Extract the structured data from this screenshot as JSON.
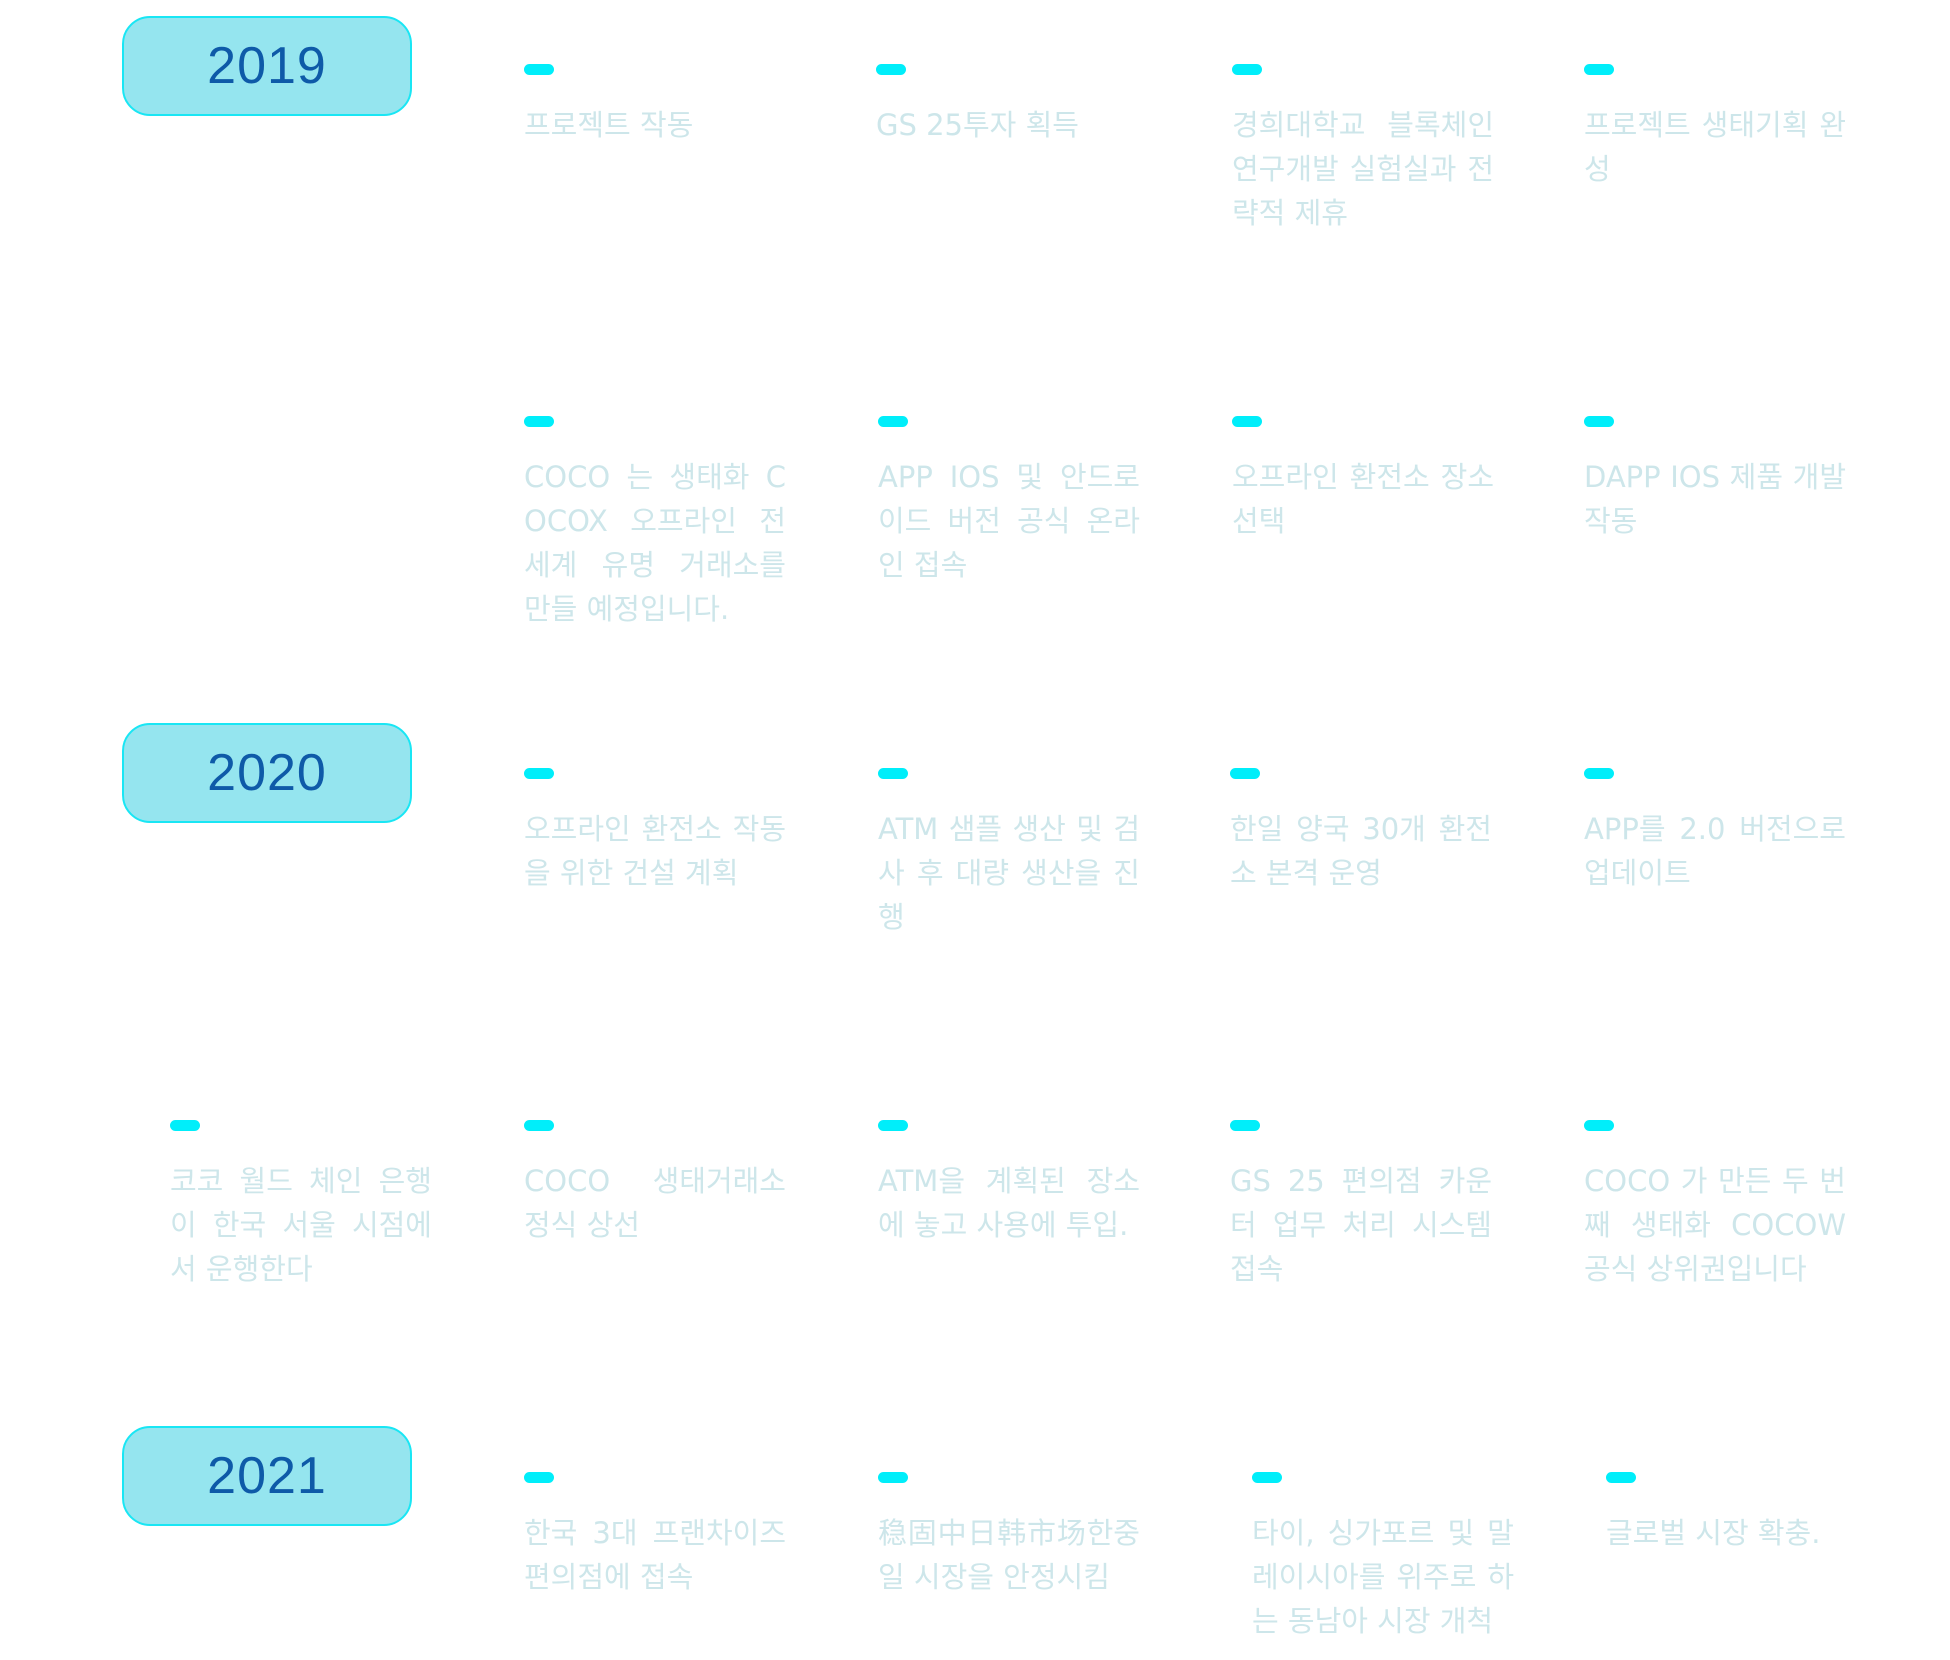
{
  "colors": {
    "badge_fill": "#95e5ef",
    "badge_border": "#19e6f4",
    "year_text": "#0e5aa8",
    "dash": "#00eefa",
    "milestone_text": "#cde6ea"
  },
  "years": [
    "2019",
    "2020",
    "2021"
  ],
  "milestones": [
    "프로젝트 작동",
    "GS 25투자 획득",
    "경희대학교 블록체인 연구개발 실험실과 전략적 제휴",
    "프로젝트 생태기획 완성",
    "COCO 는 생태화 COCOX 오프라인 전 세계 유명 거래소를 만들 예정입니다.",
    "APP IOS 및 안드로이드 버전 공식 온라인 접속",
    "오프라인 환전소 장소 선택",
    "DAPP IOS 제품 개발 작동",
    "오프라인 환전소 작동을 위한 건설 계획",
    "ATM 샘플 생산 및 검사 후 대량 생산을 진행",
    "한일 양국 30개 환전소 본격 운영",
    "APP를 2.0 버전으로 업데이트",
    "코코 월드 체인 은행이 한국 서울 시점에서 운행한다",
    "COCO 생태거래소 정식 상선",
    "ATM을 계획된 장소에 놓고 사용에 투입.",
    "GS 25 편의점 카운터 업무 처리 시스템 접속",
    "COCO 가 만든 두 번째 생태화 COCOW 공식 상위권입니다",
    "한국 3대 프랜차이즈 편의점에 접속",
    "稳固中日韩市场한중일 시장을 안정시킴",
    "타이, 싱가포르 및 말레이시아를 위주로 하는 동남아 시장 개척",
    "글로벌 시장 확충."
  ]
}
